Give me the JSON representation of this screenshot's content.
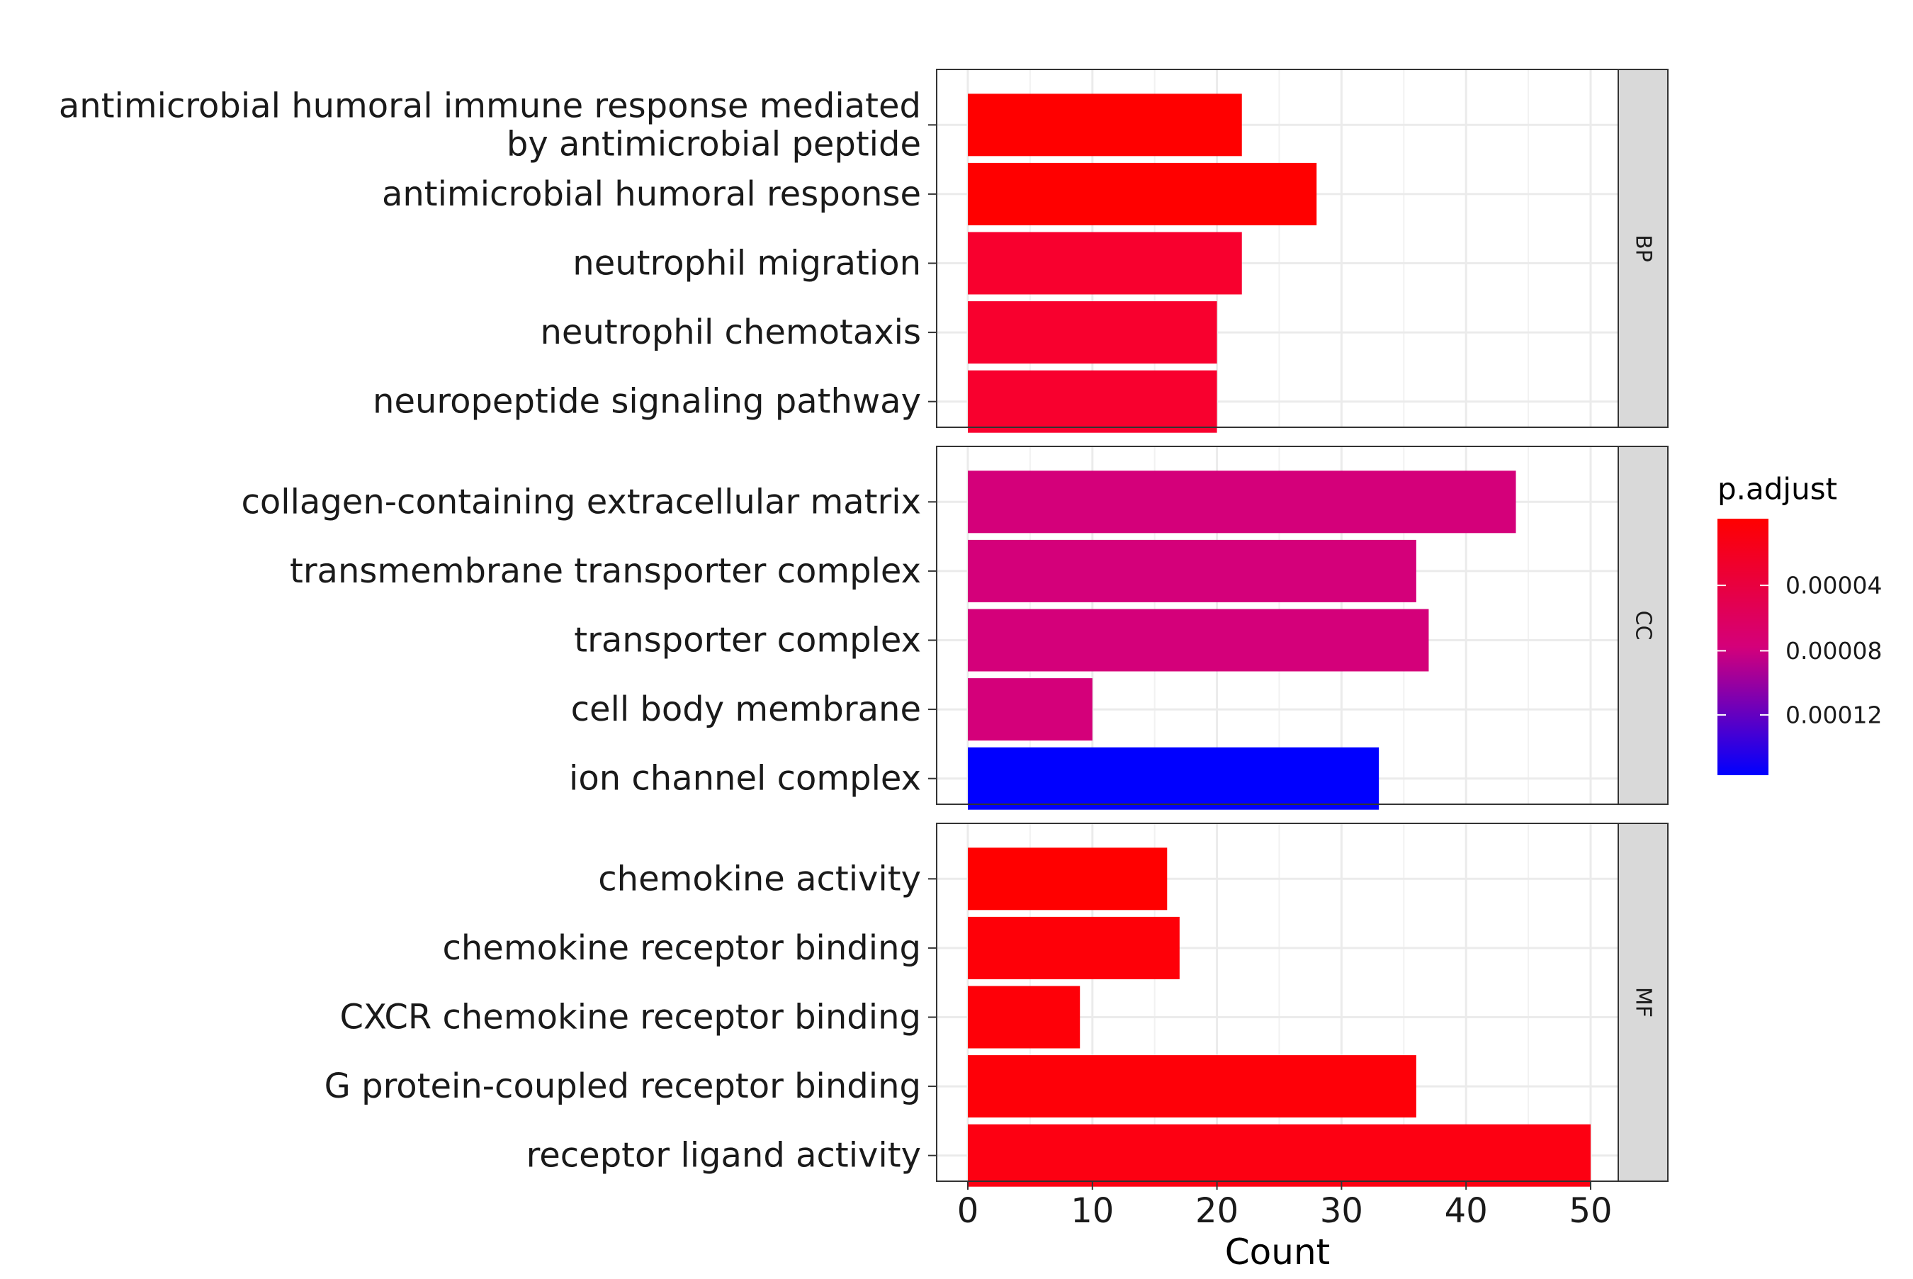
{
  "chart_data": {
    "type": "bar",
    "orientation": "horizontal",
    "xlabel": "Count",
    "ylabel": "",
    "xlim": [
      0,
      52.5
    ],
    "x_ticks": [
      0,
      10,
      20,
      30,
      40,
      50
    ],
    "grid": true,
    "facets": [
      {
        "name": "BP",
        "categories": [
          "antimicrobial humoral immune response mediated by antimicrobial peptide",
          "antimicrobial humoral response",
          "neutrophil migration",
          "neutrophil chemotaxis",
          "neuropeptide signaling pathway"
        ],
        "category_lines": [
          [
            "antimicrobial humoral immune response mediated",
            "by antimicrobial peptide"
          ],
          [
            "antimicrobial humoral response"
          ],
          [
            "neutrophil migration"
          ],
          [
            "neutrophil chemotaxis"
          ],
          [
            "neuropeptide signaling pathway"
          ]
        ],
        "values": [
          22,
          28,
          22,
          20,
          20
        ],
        "colors": [
          "#FF0000",
          "#FF0000",
          "#F8002E",
          "#F8002E",
          "#F8002E"
        ]
      },
      {
        "name": "CC",
        "categories": [
          "collagen-containing extracellular matrix",
          "transmembrane transporter complex",
          "transporter complex",
          "cell body membrane",
          "ion channel complex"
        ],
        "category_lines": [
          [
            "collagen-containing extracellular matrix"
          ],
          [
            "transmembrane transporter complex"
          ],
          [
            "transporter complex"
          ],
          [
            "cell body membrane"
          ],
          [
            "ion channel complex"
          ]
        ],
        "values": [
          44,
          36,
          37,
          10,
          33
        ],
        "colors": [
          "#D4007A",
          "#D4007A",
          "#D4007A",
          "#D4007A",
          "#0000FF"
        ]
      },
      {
        "name": "MF",
        "categories": [
          "chemokine activity",
          "chemokine receptor binding",
          "CXCR chemokine receptor binding",
          "G protein-coupled receptor binding",
          "receptor ligand activity"
        ],
        "category_lines": [
          [
            "chemokine activity"
          ],
          [
            "chemokine receptor binding"
          ],
          [
            "CXCR chemokine receptor binding"
          ],
          [
            "G protein-coupled receptor binding"
          ],
          [
            "receptor ligand activity"
          ]
        ],
        "values": [
          16,
          17,
          9,
          36,
          50
        ],
        "colors": [
          "#FF0000",
          "#FE0008",
          "#FE0008",
          "#FE0008",
          "#FD0012"
        ]
      }
    ],
    "legend": {
      "title": "p.adjust",
      "position": "right",
      "gradient_colors": [
        "#FF0000",
        "#D4007A",
        "#0000FF"
      ],
      "tick_labels": [
        "0.00004",
        "0.00008",
        "0.00012"
      ],
      "tick_fractions": [
        0.26,
        0.515,
        0.765
      ]
    }
  }
}
